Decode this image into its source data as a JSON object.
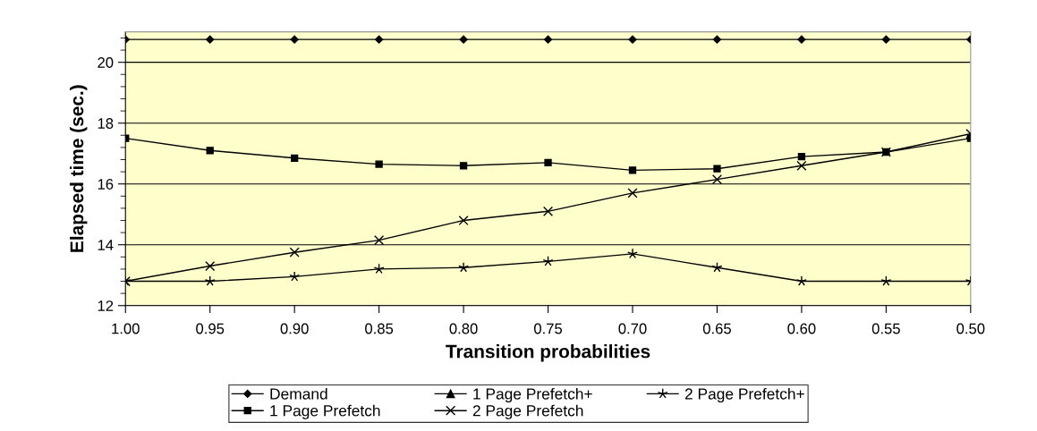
{
  "chart_data": {
    "type": "line",
    "xlabel": "Transition probabilities",
    "ylabel": "Elapsed time (sec.)",
    "x": [
      1.0,
      0.95,
      0.9,
      0.85,
      0.8,
      0.75,
      0.7,
      0.65,
      0.6,
      0.55,
      0.5
    ],
    "xlim": [
      1.0,
      0.5
    ],
    "xticks": [
      {
        "value": 1.0,
        "label": "1.00"
      },
      0.95,
      {
        "value": 0.9,
        "label": "0.90"
      },
      0.85,
      {
        "value": 0.8,
        "label": "0.80"
      },
      0.75,
      {
        "value": 0.7,
        "label": "0.70"
      },
      0.65,
      {
        "value": 0.6,
        "label": "0.60"
      },
      0.55,
      {
        "value": 0.5,
        "label": "0.50"
      }
    ],
    "ylim": [
      12,
      21
    ],
    "yticks": [
      12,
      14,
      16,
      18,
      20
    ],
    "grid": "y",
    "legend": "bottom",
    "series": [
      {
        "name": "Demand",
        "color": "#000000",
        "marker": "diamond",
        "values": [
          20.75,
          20.75,
          20.75,
          20.75,
          20.75,
          20.75,
          20.75,
          20.75,
          20.75,
          20.75,
          20.75
        ]
      },
      {
        "name": "1 Page Prefetch",
        "color": "#000000",
        "marker": "square",
        "values": [
          17.5,
          17.1,
          16.85,
          16.65,
          16.6,
          16.7,
          16.45,
          16.5,
          16.9,
          17.05,
          17.5
        ]
      },
      {
        "name": "1 Page Prefetch+",
        "color": "#000000",
        "marker": "triangle",
        "values": [
          null,
          null,
          null,
          null,
          null,
          null,
          null,
          null,
          null,
          null,
          null
        ]
      },
      {
        "name": "2 Page Prefetch",
        "color": "#000000",
        "marker": "cross",
        "values": [
          12.8,
          13.3,
          13.75,
          14.15,
          14.8,
          15.1,
          15.7,
          16.15,
          16.6,
          17.05,
          17.65
        ]
      },
      {
        "name": "2 Page Prefetch+",
        "color": "#000000",
        "marker": "star",
        "values": [
          12.8,
          12.8,
          12.95,
          13.2,
          13.25,
          13.45,
          13.7,
          13.25,
          12.8,
          12.8,
          12.8
        ]
      }
    ]
  }
}
